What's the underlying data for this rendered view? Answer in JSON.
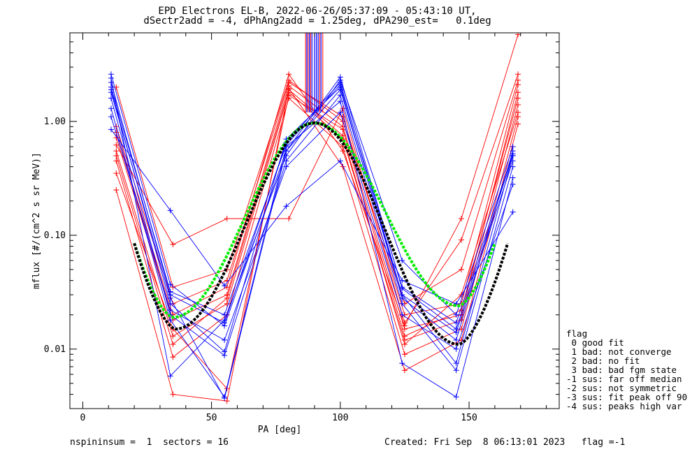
{
  "title_line1": "EPD Electrons EL-B, 2022-06-26/05:37:09 - 05:43:10 UT,",
  "title_line2": "dSectr2add = -4, dPhAng2add = 1.25deg, dPA290_est=   0.1deg",
  "footer_left": "nspininsum =  1  sectors = 16",
  "footer_right": "Created: Fri Sep  8 06:13:01 2023   flag =-1",
  "legend": {
    "title": "flag",
    "items": [
      " 0 good fit",
      " 1 bad: not converge",
      " 2 bad: no fit",
      " 3 bad: bad fgm state",
      "-1 sus: far off median",
      "-2 sus: not symmetric",
      "-3 sus: fit peak off 90",
      "-4 sus: peaks high var"
    ]
  },
  "chart_data": {
    "type": "line",
    "xlabel": "PA [deg]",
    "ylabel": "mflux [#/(cm^2 s sr MeV)]",
    "xlim": [
      -5,
      185
    ],
    "ylim": [
      0.003,
      6.0
    ],
    "yscale": "log",
    "x_ticks": [
      0,
      50,
      100,
      150
    ],
    "x_tick_labels": [
      "0",
      "50",
      "100",
      "150"
    ],
    "y_ticks": [
      0.01,
      0.1,
      1.0
    ],
    "y_tick_labels": [
      "0.01",
      "0.10",
      "1.00"
    ],
    "colors": {
      "up": "#ff0000",
      "down": "#0000ff",
      "fit_green": "#00ee00",
      "fit_black": "#000000"
    },
    "series": [
      {
        "color": "red",
        "x": [
          13,
          35,
          56,
          80,
          101,
          125,
          147,
          169
        ],
        "y": [
          0.72,
          0.018,
          0.03,
          2.05,
          0.9,
          0.015,
          0.02,
          1.8
        ]
      },
      {
        "color": "red",
        "x": [
          13,
          35,
          56,
          80,
          101,
          125,
          147,
          169
        ],
        "y": [
          0.55,
          0.013,
          0.025,
          1.8,
          0.7,
          0.012,
          0.018,
          1.4
        ]
      },
      {
        "color": "red",
        "x": [
          13,
          35,
          56,
          80,
          101,
          125,
          147,
          169
        ],
        "y": [
          0.9,
          0.025,
          0.04,
          2.2,
          1.1,
          0.02,
          0.025,
          2.1
        ]
      },
      {
        "color": "red",
        "x": [
          13,
          35,
          56,
          80,
          101,
          125,
          147,
          169
        ],
        "y": [
          0.45,
          0.0085,
          0.02,
          1.6,
          0.6,
          0.009,
          0.015,
          1.1
        ]
      },
      {
        "color": "red",
        "x": [
          13,
          35,
          56,
          80,
          101,
          125,
          147,
          169
        ],
        "y": [
          0.25,
          0.004,
          0.0035,
          1.95,
          0.4,
          0.0065,
          0.012,
          0.95
        ]
      },
      {
        "color": "red",
        "x": [
          13,
          35,
          56,
          80,
          101,
          125,
          147,
          169
        ],
        "y": [
          0.62,
          0.083,
          0.14,
          0.14,
          1.3,
          0.017,
          0.091,
          2.6
        ]
      },
      {
        "color": "red",
        "x": [
          13,
          35,
          56,
          80,
          101,
          125,
          147,
          169
        ],
        "y": [
          0.8,
          0.02,
          0.035,
          2.6,
          0.55,
          0.016,
          0.14,
          5.8
        ]
      },
      {
        "color": "red",
        "x": [
          13,
          35,
          56,
          80,
          101,
          125,
          147,
          169
        ],
        "y": [
          0.35,
          0.015,
          0.0045,
          1.7,
          0.85,
          0.013,
          0.022,
          1.6
        ]
      },
      {
        "color": "red",
        "x": [
          13,
          35,
          56,
          80,
          101,
          125,
          147,
          169
        ],
        "y": [
          2.0,
          0.035,
          0.05,
          2.3,
          1.0,
          0.025,
          0.05,
          2.3
        ]
      },
      {
        "color": "red",
        "x": [
          13,
          35,
          56,
          80,
          101,
          125,
          147,
          169
        ],
        "y": [
          0.5,
          0.011,
          0.028,
          1.9,
          0.75,
          0.011,
          0.03,
          1.2
        ]
      },
      {
        "color": "blue",
        "x": [
          11,
          34,
          55,
          79,
          100,
          124,
          145,
          167
        ],
        "y": [
          2.6,
          0.037,
          0.016,
          0.55,
          2.45,
          0.034,
          0.015,
          0.5
        ]
      },
      {
        "color": "blue",
        "x": [
          11,
          34,
          55,
          79,
          100,
          124,
          145,
          167
        ],
        "y": [
          2.2,
          0.03,
          0.017,
          0.65,
          2.2,
          0.03,
          0.014,
          0.45
        ]
      },
      {
        "color": "blue",
        "x": [
          11,
          34,
          55,
          79,
          100,
          124,
          145,
          167
        ],
        "y": [
          1.9,
          0.025,
          0.0095,
          0.7,
          2.0,
          0.028,
          0.012,
          0.55
        ]
      },
      {
        "color": "blue",
        "x": [
          11,
          34,
          55,
          79,
          100,
          124,
          145,
          167
        ],
        "y": [
          1.6,
          0.02,
          0.0088,
          0.45,
          1.7,
          0.025,
          0.0065,
          0.4
        ]
      },
      {
        "color": "blue",
        "x": [
          11,
          34,
          55,
          79,
          100,
          124,
          145,
          167
        ],
        "y": [
          1.3,
          0.018,
          0.0038,
          0.6,
          1.5,
          0.0075,
          0.0038,
          0.32
        ]
      },
      {
        "color": "blue",
        "x": [
          11,
          34,
          55,
          79,
          100,
          124,
          145,
          167
        ],
        "y": [
          0.85,
          0.165,
          0.036,
          0.18,
          0.45,
          0.04,
          0.025,
          0.16
        ]
      },
      {
        "color": "blue",
        "x": [
          11,
          34,
          55,
          79,
          100,
          124,
          145,
          167
        ],
        "y": [
          2.4,
          0.0058,
          0.018,
          0.5,
          2.3,
          0.06,
          0.02,
          0.6
        ]
      },
      {
        "color": "blue",
        "x": [
          11,
          34,
          55,
          79,
          100,
          124,
          145,
          167
        ],
        "y": [
          1.8,
          0.028,
          0.0037,
          0.55,
          1.9,
          0.03,
          0.0075,
          0.5
        ]
      },
      {
        "color": "blue",
        "x": [
          11,
          34,
          55,
          79,
          100,
          124,
          145,
          167
        ],
        "y": [
          2.0,
          0.032,
          0.02,
          0.62,
          2.1,
          0.035,
          0.017,
          0.52
        ]
      },
      {
        "color": "blue",
        "x": [
          11,
          34,
          55,
          79,
          100,
          124,
          145,
          167
        ],
        "y": [
          1.1,
          0.022,
          0.012,
          0.4,
          1.2,
          0.02,
          0.01,
          0.28
        ]
      }
    ],
    "spikes": {
      "x_min": 86,
      "x_max": 93.5,
      "y_low": 1.2,
      "y_high": 6.0,
      "red_x": [
        86.5,
        87.5,
        88.5,
        92,
        93.2
      ],
      "blue_x": [
        87,
        88,
        89,
        90,
        90.7,
        91.4,
        92.5
      ]
    },
    "fits": [
      {
        "name": "green",
        "x_min": 20,
        "x_max": 160,
        "center": 90,
        "peak": 0.97,
        "trough_at": 35,
        "trough": 0.019,
        "second_trough_at": 146,
        "second_trough": 0.024
      },
      {
        "name": "black",
        "x_min": 20,
        "x_max": 165,
        "center": 90,
        "peak": 0.97,
        "trough_at": 36,
        "trough": 0.015,
        "second_trough_at": 146,
        "second_trough": 0.011
      }
    ]
  }
}
